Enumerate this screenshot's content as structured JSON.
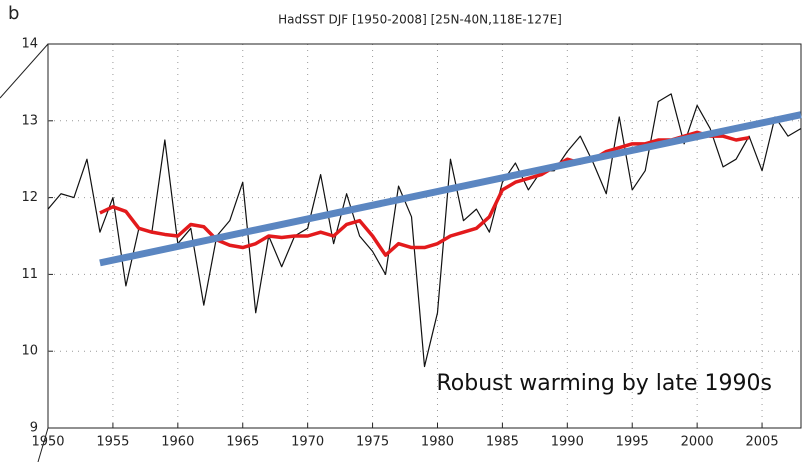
{
  "chart_data": {
    "type": "line",
    "panel_label": "b",
    "title": "HadSST DJF [1950-2008] [25N-40N,118E-127E]",
    "annotation": "Robust warming by late 1990s",
    "x": [
      1950,
      1951,
      1952,
      1953,
      1954,
      1955,
      1956,
      1957,
      1958,
      1959,
      1960,
      1961,
      1962,
      1963,
      1964,
      1965,
      1966,
      1967,
      1968,
      1969,
      1970,
      1971,
      1972,
      1973,
      1974,
      1975,
      1976,
      1977,
      1978,
      1979,
      1980,
      1981,
      1982,
      1983,
      1984,
      1985,
      1986,
      1987,
      1988,
      1989,
      1990,
      1991,
      1992,
      1993,
      1994,
      1995,
      1996,
      1997,
      1998,
      1999,
      2000,
      2001,
      2002,
      2003,
      2004,
      2005,
      2006,
      2007,
      2008
    ],
    "series": [
      {
        "color": "#111111",
        "width": 1.2,
        "values": [
          11.85,
          12.05,
          12.0,
          12.5,
          11.55,
          12.0,
          10.85,
          11.6,
          11.55,
          12.75,
          11.4,
          11.6,
          10.6,
          11.5,
          11.7,
          12.2,
          10.5,
          11.5,
          11.1,
          11.5,
          11.6,
          12.3,
          11.4,
          12.05,
          11.5,
          11.3,
          11.0,
          12.15,
          11.75,
          9.8,
          10.5,
          12.5,
          11.7,
          11.85,
          11.55,
          12.2,
          12.45,
          12.1,
          12.35,
          12.35,
          12.6,
          12.8,
          12.45,
          12.05,
          13.05,
          12.1,
          12.35,
          13.25,
          13.35,
          12.7,
          13.2,
          12.9,
          12.4,
          12.5,
          12.8,
          12.35,
          13.05,
          12.8,
          12.9
        ]
      },
      {
        "color": "#e31a1c",
        "width": 3.5,
        "values": [
          null,
          null,
          null,
          null,
          11.8,
          11.88,
          11.82,
          11.6,
          11.55,
          11.52,
          11.5,
          11.65,
          11.62,
          11.45,
          11.38,
          11.35,
          11.4,
          11.5,
          11.48,
          11.5,
          11.5,
          11.55,
          11.5,
          11.65,
          11.7,
          11.5,
          11.25,
          11.4,
          11.35,
          11.35,
          11.4,
          11.5,
          11.55,
          11.6,
          11.75,
          12.1,
          12.2,
          12.25,
          12.3,
          12.4,
          12.5,
          12.45,
          12.5,
          12.6,
          12.65,
          12.7,
          12.7,
          12.75,
          12.75,
          12.8,
          12.85,
          12.8,
          12.8,
          12.75,
          12.78,
          null,
          null,
          null,
          null
        ]
      },
      {
        "color": "#5b86c1",
        "width": 7,
        "x": [
          1954,
          2008
        ],
        "values": [
          11.15,
          13.08
        ]
      }
    ],
    "xlim": [
      1950,
      2008
    ],
    "ylim": [
      9,
      14
    ],
    "xticks": [
      1950,
      1955,
      1960,
      1965,
      1970,
      1975,
      1980,
      1985,
      1990,
      1995,
      2000,
      2005
    ],
    "yticks": [
      9,
      10,
      11,
      12,
      13,
      14
    ],
    "grid": true
  }
}
